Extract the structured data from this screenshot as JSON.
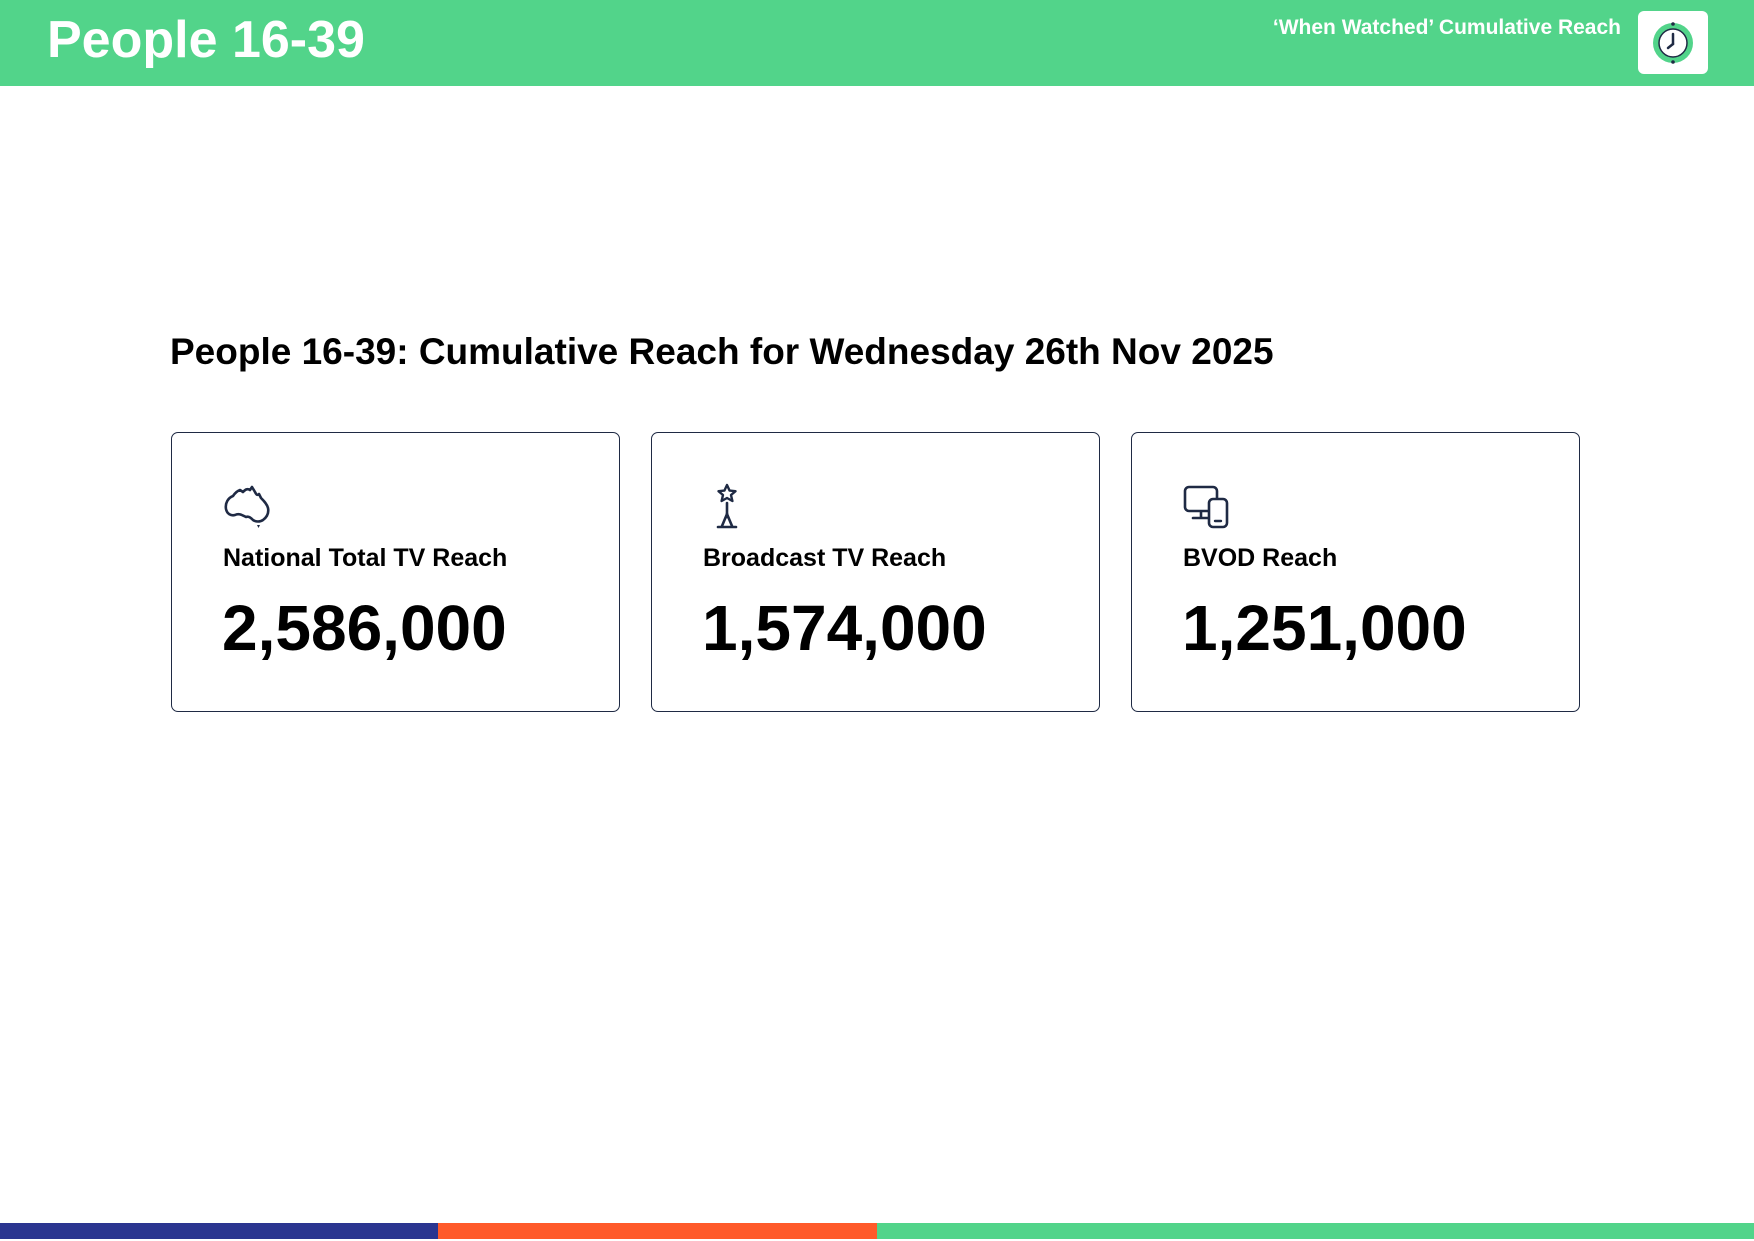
{
  "header": {
    "title": "People 16-39",
    "report_name": "‘When Watched’ Cumulative Reach",
    "icon": "clock-icon"
  },
  "main": {
    "heading": "People 16-39: Cumulative Reach for Wednesday 26th Nov 2025",
    "cards": [
      {
        "icon": "australia-map-icon",
        "label": "National Total TV Reach",
        "value": "2,586,000"
      },
      {
        "icon": "broadcast-tower-icon",
        "label": "Broadcast TV Reach",
        "value": "1,574,000"
      },
      {
        "icon": "devices-icon",
        "label": "BVOD Reach",
        "value": "1,251,000"
      }
    ]
  },
  "colors": {
    "header_green": "#52d48a",
    "icon_navy": "#1f2a44",
    "footer_navy": "#2b3590",
    "footer_orange": "#ff5a2a",
    "footer_green": "#52d48a"
  }
}
